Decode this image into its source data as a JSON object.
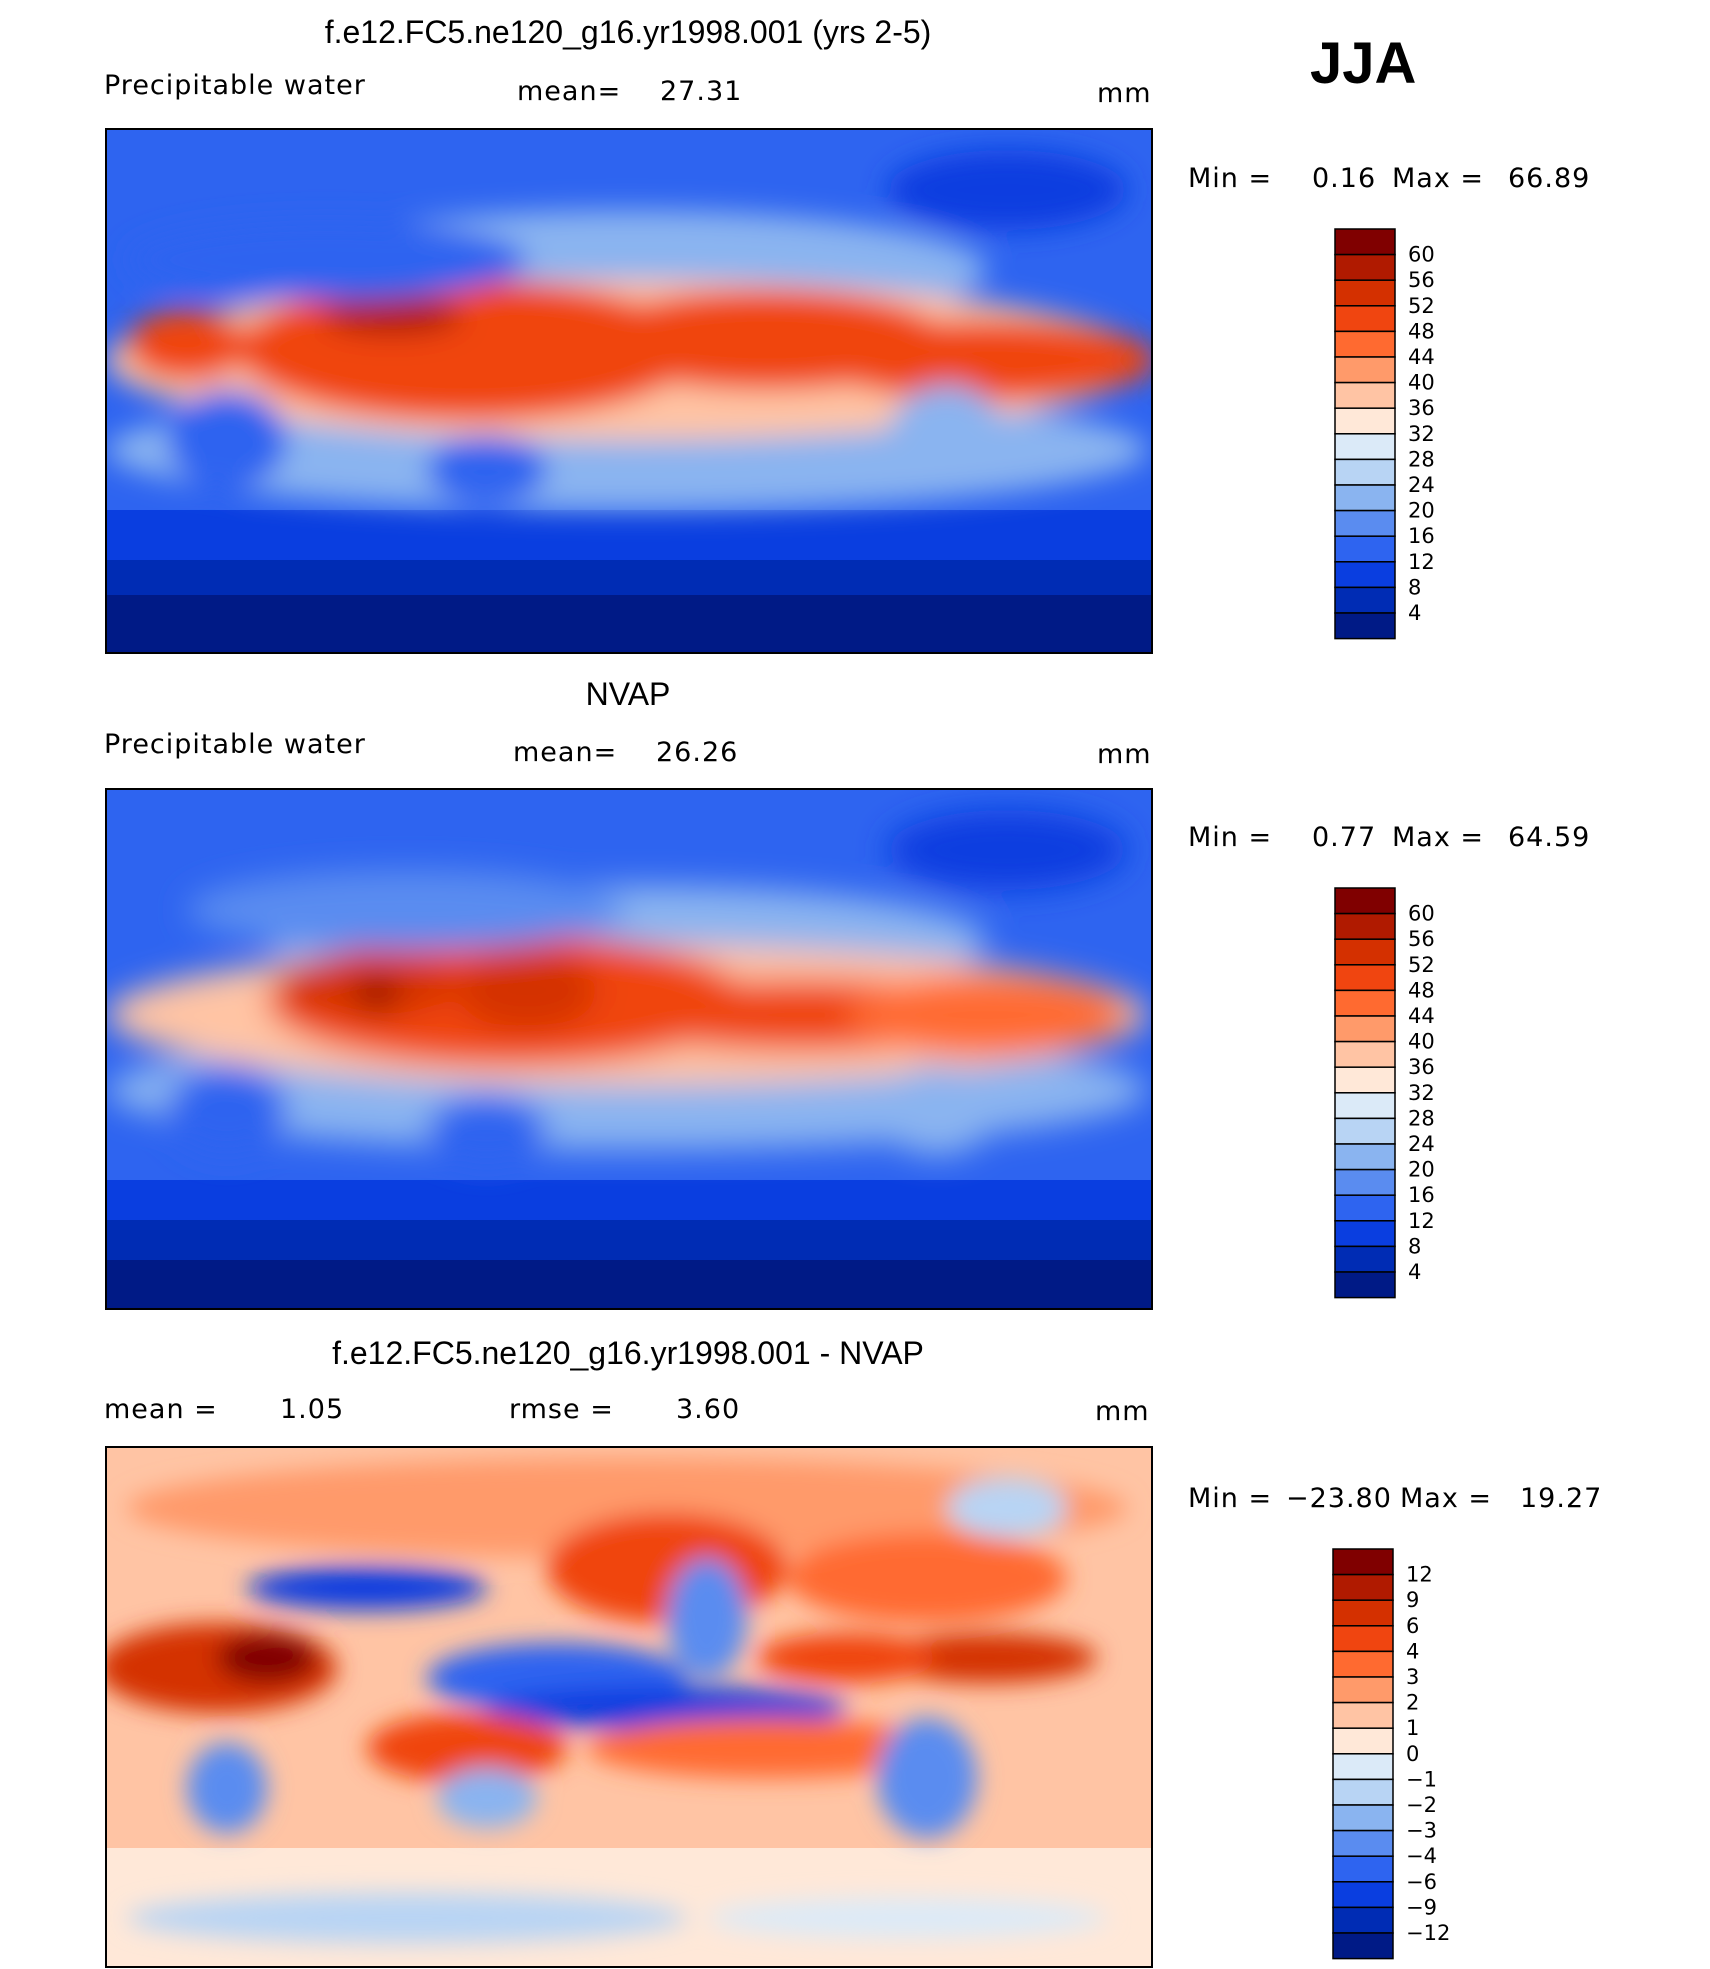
{
  "season": "JJA",
  "panels": [
    {
      "id": "model",
      "title": "f.e12.FC5.ne120_g16.yr1998.001 (yrs 2-5)",
      "left_label": "Precipitable  water",
      "middle_label": "mean=",
      "middle_value": "27.31",
      "units": "mm",
      "minmax": {
        "min_label": "Min  =",
        "min_value": "0.16",
        "max_label": "Max  =",
        "max_value": "66.89"
      },
      "colorbar": {
        "levels": [
          "60",
          "56",
          "52",
          "48",
          "44",
          "40",
          "36",
          "32",
          "28",
          "24",
          "20",
          "16",
          "12",
          "8",
          "4"
        ],
        "colors": [
          "#800000",
          "#b01a00",
          "#d43000",
          "#f04510",
          "#ff6a30",
          "#ff9a6a",
          "#ffc4a4",
          "#ffe8d8",
          "#dbeaf8",
          "#b8d4f4",
          "#8ab4f0",
          "#5a8cf0",
          "#2e64f0",
          "#0a3ee0",
          "#002cb4",
          "#001a86"
        ]
      }
    },
    {
      "id": "obs",
      "title": "NVAP",
      "left_label": "Precipitable  water",
      "middle_label": "mean=",
      "middle_value": "26.26",
      "units": "mm",
      "minmax": {
        "min_label": "Min  =",
        "min_value": "0.77",
        "max_label": "Max  =",
        "max_value": "64.59"
      },
      "colorbar": {
        "levels": [
          "60",
          "56",
          "52",
          "48",
          "44",
          "40",
          "36",
          "32",
          "28",
          "24",
          "20",
          "16",
          "12",
          "8",
          "4"
        ],
        "colors": [
          "#800000",
          "#b01a00",
          "#d43000",
          "#f04510",
          "#ff6a30",
          "#ff9a6a",
          "#ffc4a4",
          "#ffe8d8",
          "#dbeaf8",
          "#b8d4f4",
          "#8ab4f0",
          "#5a8cf0",
          "#2e64f0",
          "#0a3ee0",
          "#002cb4",
          "#001a86"
        ]
      }
    },
    {
      "id": "diff",
      "title": "f.e12.FC5.ne120_g16.yr1998.001 - NVAP",
      "left_label": "mean  =",
      "left_value": "1.05",
      "middle_label": "rmse  =",
      "middle_value": "3.60",
      "units": "mm",
      "minmax": {
        "min_label": "Min  =",
        "min_value": "−23.80",
        "max_label": "Max  =",
        "max_value": "19.27"
      },
      "colorbar": {
        "levels": [
          "12",
          "9",
          "6",
          "4",
          "3",
          "2",
          "1",
          "0",
          "−1",
          "−2",
          "−3",
          "−4",
          "−6",
          "−9",
          "−12"
        ],
        "colors": [
          "#800000",
          "#b01a00",
          "#d43000",
          "#f04510",
          "#ff6a30",
          "#ff9a6a",
          "#ffc4a4",
          "#ffe8d8",
          "#dbeaf8",
          "#b8d4f4",
          "#8ab4f0",
          "#5a8cf0",
          "#2e64f0",
          "#0a3ee0",
          "#002cb4",
          "#001a86"
        ]
      }
    }
  ]
}
